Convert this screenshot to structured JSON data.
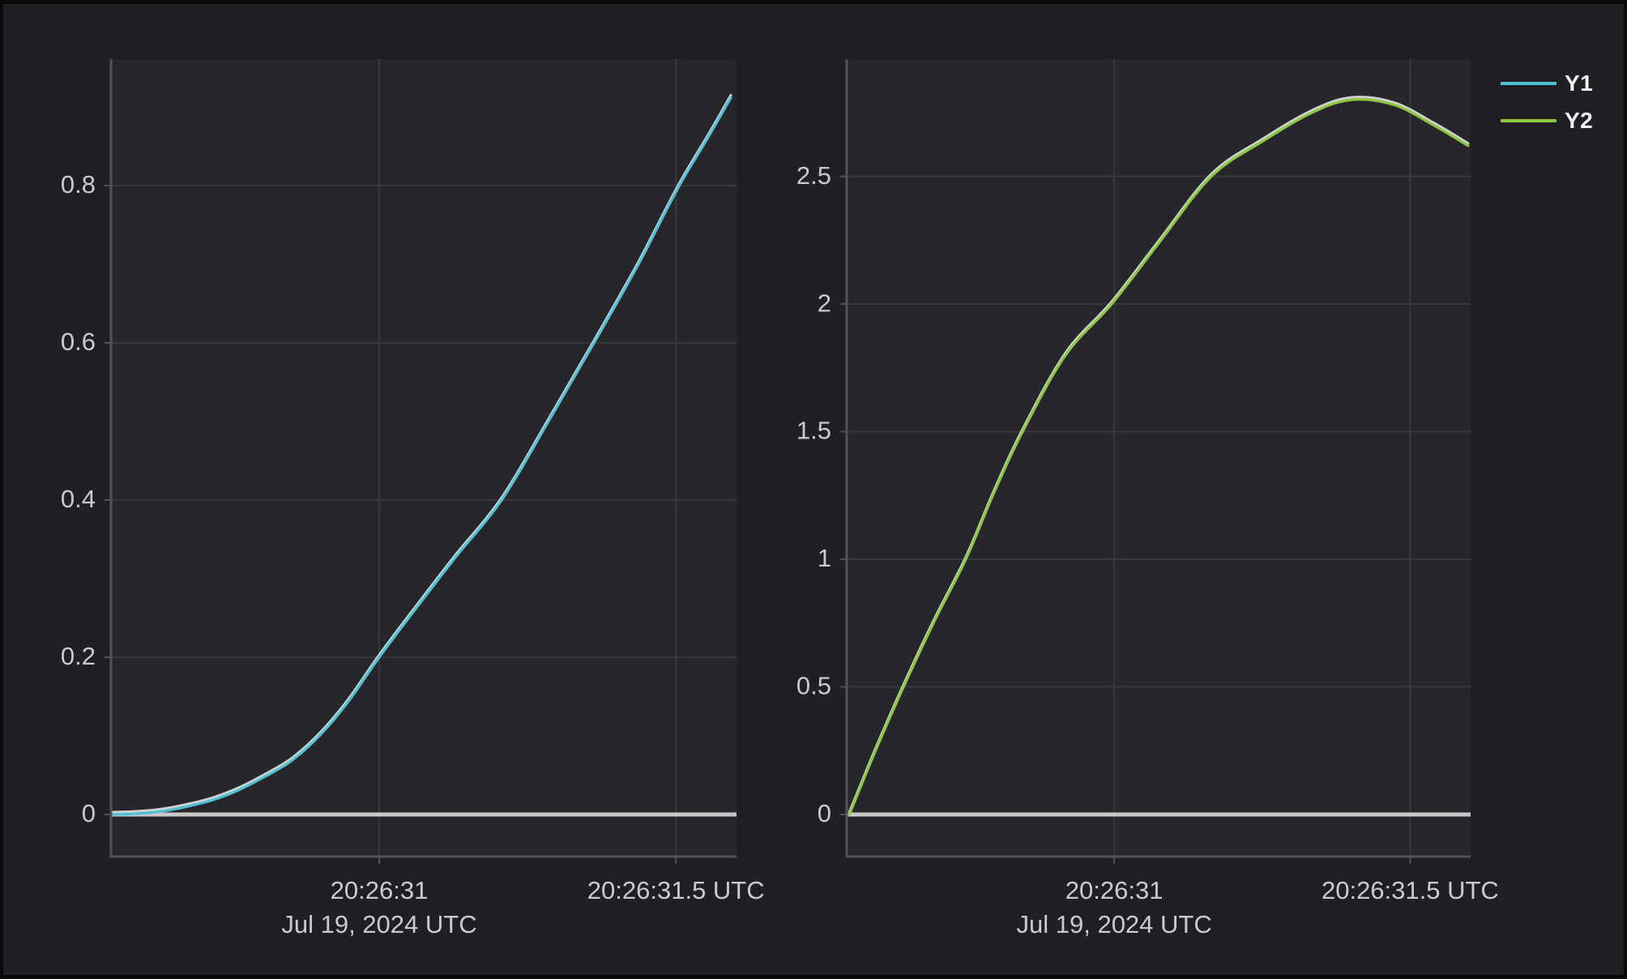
{
  "style": {
    "page_border": "#0a0a0b",
    "panel_bg": "#202024",
    "plot_bg": "#27272b",
    "grid_color": "#393a3e",
    "axis_color": "#525358",
    "zero_line_color": "#c7c8c9",
    "zero_line_width": 5,
    "tick_text_color": "#cbcbcd",
    "line_highlight_color": "#cfd2d2",
    "series_colors": {
      "y1": "#4fc1d4",
      "y2": "#8dc63f"
    }
  },
  "legend": {
    "items": [
      {
        "label": "Y1",
        "color": "#4fc1d4"
      },
      {
        "label": "Y2",
        "color": "#8dc63f"
      }
    ]
  },
  "chart_data": [
    {
      "type": "line",
      "series": [
        {
          "name": "Y1",
          "color": "#4fc1d4"
        }
      ],
      "title": "",
      "xlabel": "",
      "ylabel": "",
      "x_ticks": [
        {
          "f": 0.428,
          "label": "20:26:31"
        },
        {
          "f": 0.903,
          "label": "20:26:31.5 UTC"
        }
      ],
      "x_date_label": {
        "f": 0.428,
        "label": "Jul 19, 2024 UTC"
      },
      "y_ticks": [
        {
          "v": 0,
          "label": "0"
        },
        {
          "v": 0.2,
          "label": "0.2"
        },
        {
          "v": 0.4,
          "label": "0.4"
        },
        {
          "v": 0.6,
          "label": "0.6"
        },
        {
          "v": 0.8,
          "label": "0.8"
        }
      ],
      "ylim": [
        -0.0536,
        0.9608
      ],
      "grid": true,
      "zero_line": true,
      "points": [
        [
          0.0,
          0.0
        ],
        [
          0.04,
          0.001
        ],
        [
          0.08,
          0.004
        ],
        [
          0.12,
          0.01
        ],
        [
          0.16,
          0.018
        ],
        [
          0.2,
          0.03
        ],
        [
          0.24,
          0.046
        ],
        [
          0.287,
          0.068
        ],
        [
          0.332,
          0.1
        ],
        [
          0.378,
          0.143
        ],
        [
          0.428,
          0.2
        ],
        [
          0.483,
          0.258
        ],
        [
          0.548,
          0.325
        ],
        [
          0.624,
          0.4
        ],
        [
          0.699,
          0.5
        ],
        [
          0.772,
          0.6
        ],
        [
          0.843,
          0.7
        ],
        [
          0.905,
          0.795
        ],
        [
          0.955,
          0.862
        ],
        [
          0.991,
          0.912
        ]
      ]
    },
    {
      "type": "line",
      "series": [
        {
          "name": "Y2",
          "color": "#8dc63f"
        }
      ],
      "title": "",
      "xlabel": "",
      "ylabel": "",
      "x_ticks": [
        {
          "f": 0.428,
          "label": "20:26:31"
        },
        {
          "f": 0.903,
          "label": "20:26:31.5 UTC"
        }
      ],
      "x_date_label": {
        "f": 0.428,
        "label": "Jul 19, 2024 UTC"
      },
      "y_ticks": [
        {
          "v": 0,
          "label": "0"
        },
        {
          "v": 0.5,
          "label": "0.5"
        },
        {
          "v": 1,
          "label": "1"
        },
        {
          "v": 1.5,
          "label": "1.5"
        },
        {
          "v": 2,
          "label": "2"
        },
        {
          "v": 2.5,
          "label": "2.5"
        }
      ],
      "ylim": [
        -0.165,
        2.959
      ],
      "grid": true,
      "zero_line": true,
      "points": [
        [
          0.003,
          0.0
        ],
        [
          0.045,
          0.25
        ],
        [
          0.09,
          0.5
        ],
        [
          0.14,
          0.76
        ],
        [
          0.19,
          1.0
        ],
        [
          0.235,
          1.26
        ],
        [
          0.281,
          1.5
        ],
        [
          0.35,
          1.8
        ],
        [
          0.424,
          2.0
        ],
        [
          0.5,
          2.24
        ],
        [
          0.584,
          2.5
        ],
        [
          0.668,
          2.64
        ],
        [
          0.746,
          2.75
        ],
        [
          0.809,
          2.8
        ],
        [
          0.877,
          2.78
        ],
        [
          0.941,
          2.7
        ],
        [
          0.996,
          2.62
        ]
      ]
    }
  ]
}
